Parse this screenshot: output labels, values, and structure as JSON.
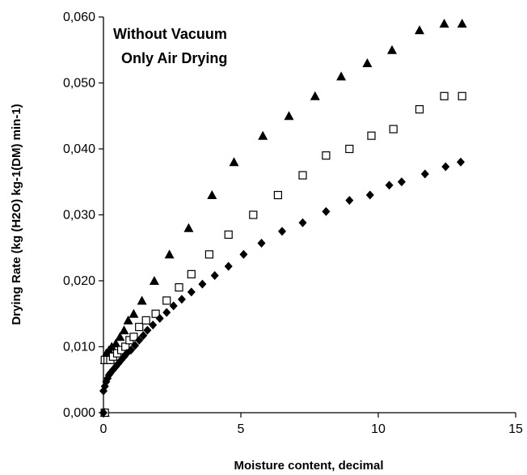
{
  "chart_data": {
    "type": "scatter",
    "title": "",
    "annotation_lines": [
      "Without Vacuum",
      "Only Air Drying"
    ],
    "xlabel": "Moisture content, decimal",
    "ylabel": "Drying Rate (kg (H2O) kg-1(DM) min-1)",
    "xlim": [
      0,
      15
    ],
    "ylim": [
      0,
      0.06
    ],
    "x_ticks": [
      "0",
      "5",
      "10",
      "15"
    ],
    "y_ticks": [
      "0,000",
      "0,010",
      "0,020",
      "0,030",
      "0,040",
      "0,050",
      "0,060"
    ],
    "x_tick_values": [
      0,
      5,
      10,
      15
    ],
    "y_tick_values": [
      0,
      0.01,
      0.02,
      0.03,
      0.04,
      0.05,
      0.06
    ],
    "grid": false,
    "legend": "none",
    "series": [
      {
        "marker": "triangle",
        "color": "#000000",
        "points": [
          [
            0.05,
            0.0
          ],
          [
            0.05,
            0.008
          ],
          [
            0.1,
            0.009
          ],
          [
            0.2,
            0.0095
          ],
          [
            0.3,
            0.01
          ],
          [
            0.45,
            0.0105
          ],
          [
            0.6,
            0.0115
          ],
          [
            0.75,
            0.0125
          ],
          [
            0.9,
            0.014
          ],
          [
            1.1,
            0.015
          ],
          [
            1.4,
            0.017
          ],
          [
            1.85,
            0.02
          ],
          [
            2.4,
            0.024
          ],
          [
            3.1,
            0.028
          ],
          [
            3.95,
            0.033
          ],
          [
            4.75,
            0.038
          ],
          [
            5.8,
            0.042
          ],
          [
            6.75,
            0.045
          ],
          [
            7.7,
            0.048
          ],
          [
            8.65,
            0.051
          ],
          [
            9.6,
            0.053
          ],
          [
            10.5,
            0.055
          ],
          [
            11.5,
            0.058
          ],
          [
            12.4,
            0.059
          ],
          [
            13.05,
            0.059
          ]
        ]
      },
      {
        "marker": "square-open",
        "color": "#000000",
        "points": [
          [
            0.05,
            0.0
          ],
          [
            0.05,
            0.008
          ],
          [
            0.15,
            0.008
          ],
          [
            0.25,
            0.008
          ],
          [
            0.35,
            0.0085
          ],
          [
            0.5,
            0.009
          ],
          [
            0.65,
            0.0095
          ],
          [
            0.8,
            0.01
          ],
          [
            0.95,
            0.011
          ],
          [
            1.1,
            0.0115
          ],
          [
            1.3,
            0.013
          ],
          [
            1.55,
            0.014
          ],
          [
            1.9,
            0.015
          ],
          [
            2.3,
            0.017
          ],
          [
            2.75,
            0.019
          ],
          [
            3.2,
            0.021
          ],
          [
            3.85,
            0.024
          ],
          [
            4.55,
            0.027
          ],
          [
            5.45,
            0.03
          ],
          [
            6.35,
            0.033
          ],
          [
            7.25,
            0.036
          ],
          [
            8.1,
            0.039
          ],
          [
            8.95,
            0.04
          ],
          [
            9.75,
            0.042
          ],
          [
            10.55,
            0.043
          ],
          [
            11.5,
            0.046
          ],
          [
            12.4,
            0.048
          ],
          [
            13.05,
            0.048
          ]
        ]
      },
      {
        "marker": "diamond",
        "color": "#000000",
        "points": [
          [
            0.0,
            0.0
          ],
          [
            0.0,
            0.0033
          ],
          [
            0.05,
            0.004
          ],
          [
            0.1,
            0.0047
          ],
          [
            0.15,
            0.0052
          ],
          [
            0.2,
            0.0057
          ],
          [
            0.25,
            0.006
          ],
          [
            0.35,
            0.0065
          ],
          [
            0.45,
            0.007
          ],
          [
            0.55,
            0.0075
          ],
          [
            0.65,
            0.008
          ],
          [
            0.75,
            0.0085
          ],
          [
            0.85,
            0.009
          ],
          [
            1.0,
            0.0095
          ],
          [
            1.15,
            0.0102
          ],
          [
            1.3,
            0.011
          ],
          [
            1.45,
            0.0117
          ],
          [
            1.6,
            0.0125
          ],
          [
            1.8,
            0.0133
          ],
          [
            2.05,
            0.0143
          ],
          [
            2.3,
            0.0152
          ],
          [
            2.55,
            0.0162
          ],
          [
            2.85,
            0.0172
          ],
          [
            3.2,
            0.0183
          ],
          [
            3.6,
            0.0195
          ],
          [
            4.05,
            0.0208
          ],
          [
            4.55,
            0.0222
          ],
          [
            5.1,
            0.024
          ],
          [
            5.75,
            0.0257
          ],
          [
            6.5,
            0.0275
          ],
          [
            7.25,
            0.0288
          ],
          [
            8.1,
            0.0305
          ],
          [
            8.95,
            0.0322
          ],
          [
            9.7,
            0.033
          ],
          [
            10.4,
            0.0345
          ],
          [
            10.85,
            0.035
          ],
          [
            11.7,
            0.0362
          ],
          [
            12.45,
            0.0373
          ],
          [
            13.0,
            0.038
          ]
        ]
      }
    ]
  }
}
